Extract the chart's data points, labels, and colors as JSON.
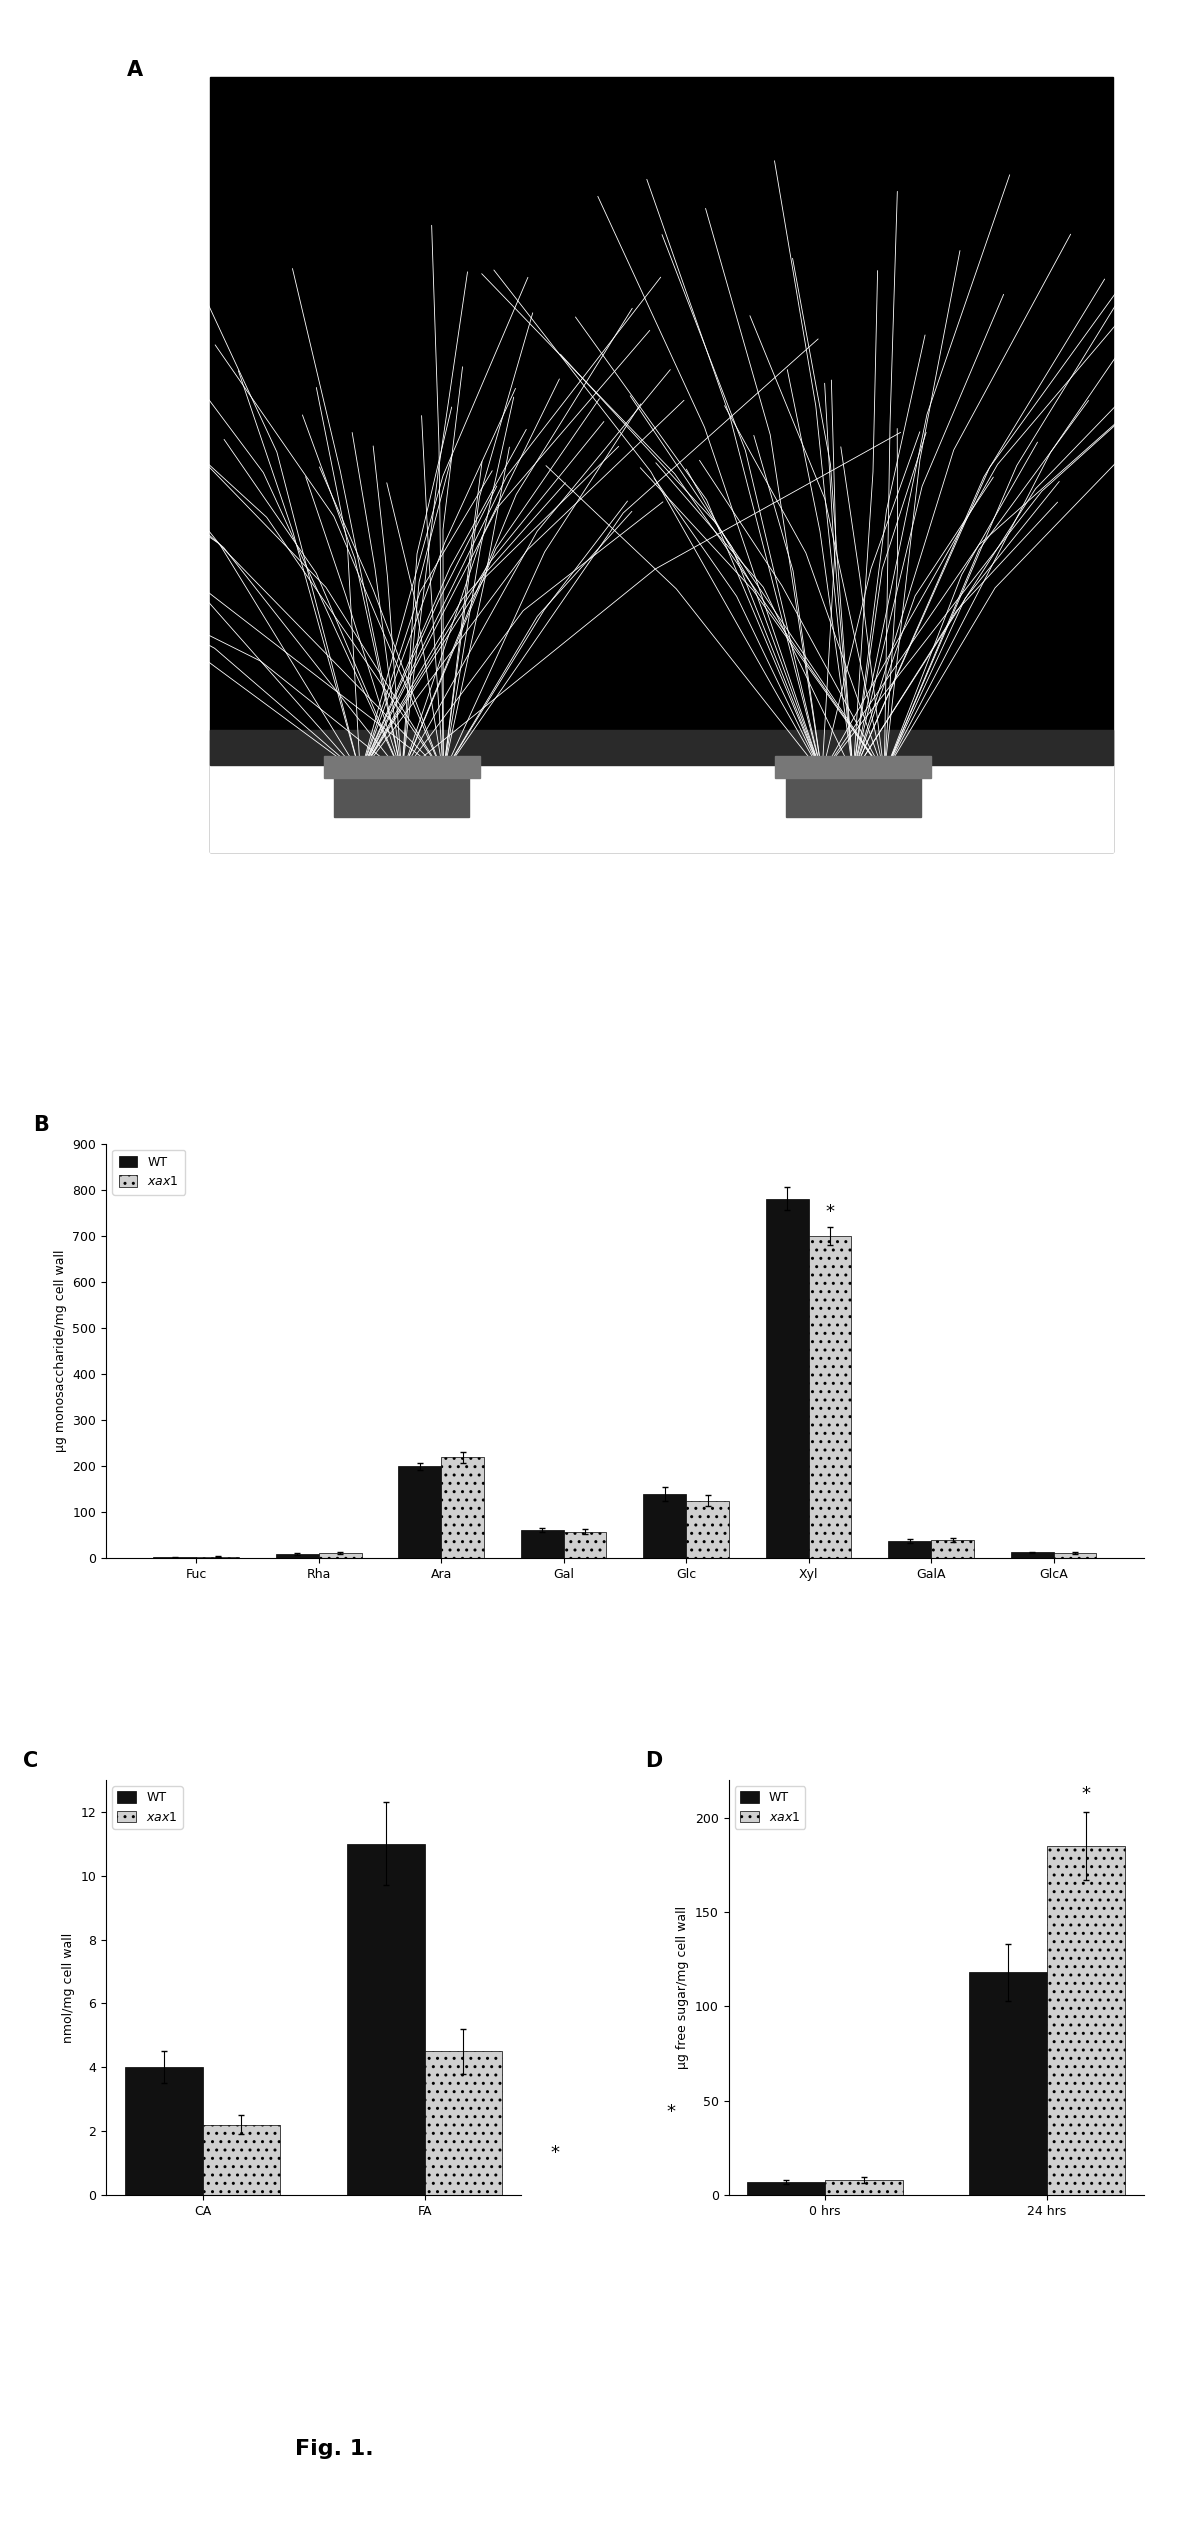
{
  "panel_B": {
    "categories": [
      "Fuc",
      "Rha",
      "Ara",
      "Gal",
      "Glc",
      "Xyl",
      "GalA",
      "GlcA"
    ],
    "WT": [
      3,
      9,
      200,
      62,
      140,
      780,
      38,
      13
    ],
    "xax1": [
      4,
      12,
      220,
      58,
      125,
      700,
      40,
      12
    ],
    "WT_err": [
      1,
      2,
      8,
      5,
      15,
      25,
      5,
      2
    ],
    "xax1_err": [
      1,
      3,
      12,
      6,
      12,
      20,
      5,
      2
    ],
    "ylabel": "µg monosaccharide/mg cell wall",
    "ylim": [
      0,
      900
    ],
    "yticks": [
      0,
      100,
      200,
      300,
      400,
      500,
      600,
      700,
      800,
      900
    ],
    "xyl_star_idx": 5,
    "label": "B"
  },
  "panel_C": {
    "categories": [
      "CA",
      "FA"
    ],
    "WT": [
      4.0,
      11.0
    ],
    "xax1": [
      2.2,
      4.5
    ],
    "WT_err": [
      0.5,
      1.3
    ],
    "xax1_err": [
      0.3,
      0.7
    ],
    "ylabel": "nmol/mg cell wall",
    "ylim": [
      0,
      13
    ],
    "yticks": [
      0,
      2,
      4,
      6,
      8,
      10,
      12
    ],
    "label": "C"
  },
  "panel_D": {
    "categories": [
      "0 hrs",
      "24 hrs"
    ],
    "WT": [
      7,
      118
    ],
    "xax1": [
      8,
      185
    ],
    "WT_err": [
      1,
      15
    ],
    "xax1_err": [
      1.5,
      18
    ],
    "ylabel": "µg free sugar/mg cell wall",
    "ylim": [
      0,
      220
    ],
    "yticks": [
      0,
      50,
      100,
      150,
      200
    ],
    "label": "D"
  },
  "wt_color": "#111111",
  "xax1_color": "#d0d0d0",
  "bar_width": 0.35,
  "fig_label_fontsize": 15,
  "axis_fontsize": 9,
  "tick_fontsize": 9,
  "legend_fontsize": 9,
  "figcaption": "Fig. 1."
}
